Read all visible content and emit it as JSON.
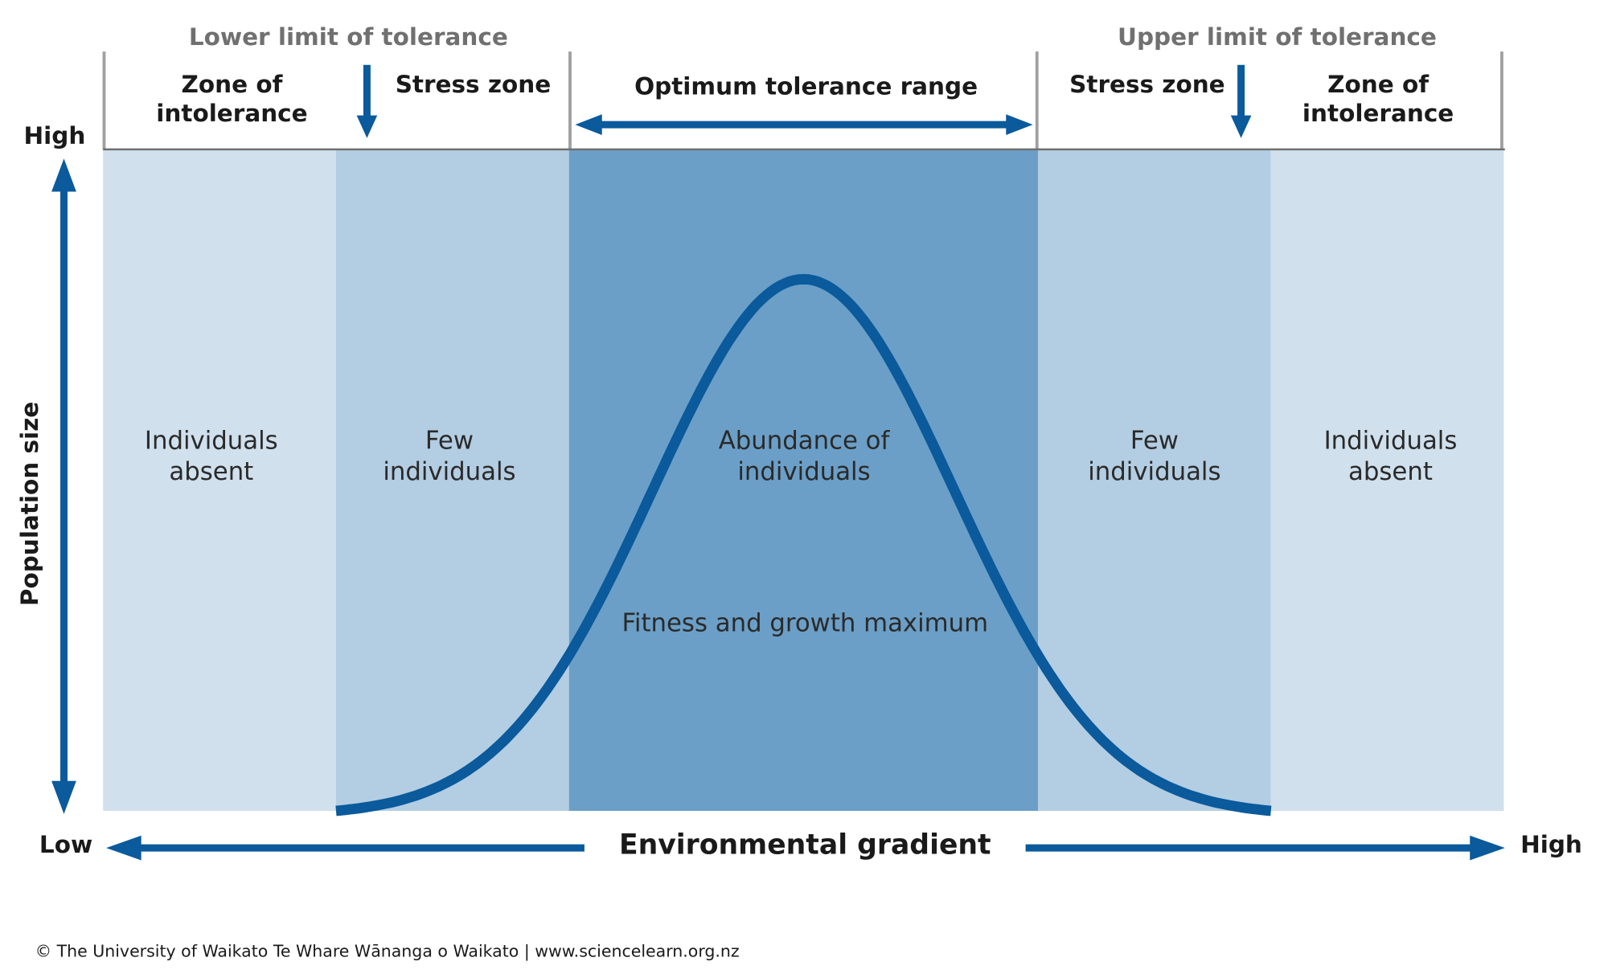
{
  "header": {
    "lower_limit": "Lower limit of tolerance",
    "upper_limit": "Upper limit of tolerance"
  },
  "zones": [
    {
      "label": [
        "Zone of",
        "intolerance"
      ],
      "description": [
        "Individuals",
        "absent"
      ]
    },
    {
      "label": [
        "Stress zone"
      ],
      "description": [
        "Few",
        "individuals"
      ]
    },
    {
      "label": [
        "Optimum tolerance range"
      ],
      "description": [
        "Abundance of",
        "individuals"
      ]
    },
    {
      "label": [
        "Stress zone"
      ],
      "description": [
        "Few",
        "individuals"
      ]
    },
    {
      "label": [
        "Zone of",
        "intolerance"
      ],
      "description": [
        "Individuals",
        "absent"
      ]
    }
  ],
  "peak_note": "Fitness and growth maximum",
  "axes": {
    "y_label": "Population size",
    "y_high": "High",
    "x_label": "Environmental gradient",
    "x_low": "Low",
    "x_high": "High"
  },
  "footer": "© The University of Waikato Te Whare Wānanga o Waikato | www.sciencelearn.org.nz"
}
